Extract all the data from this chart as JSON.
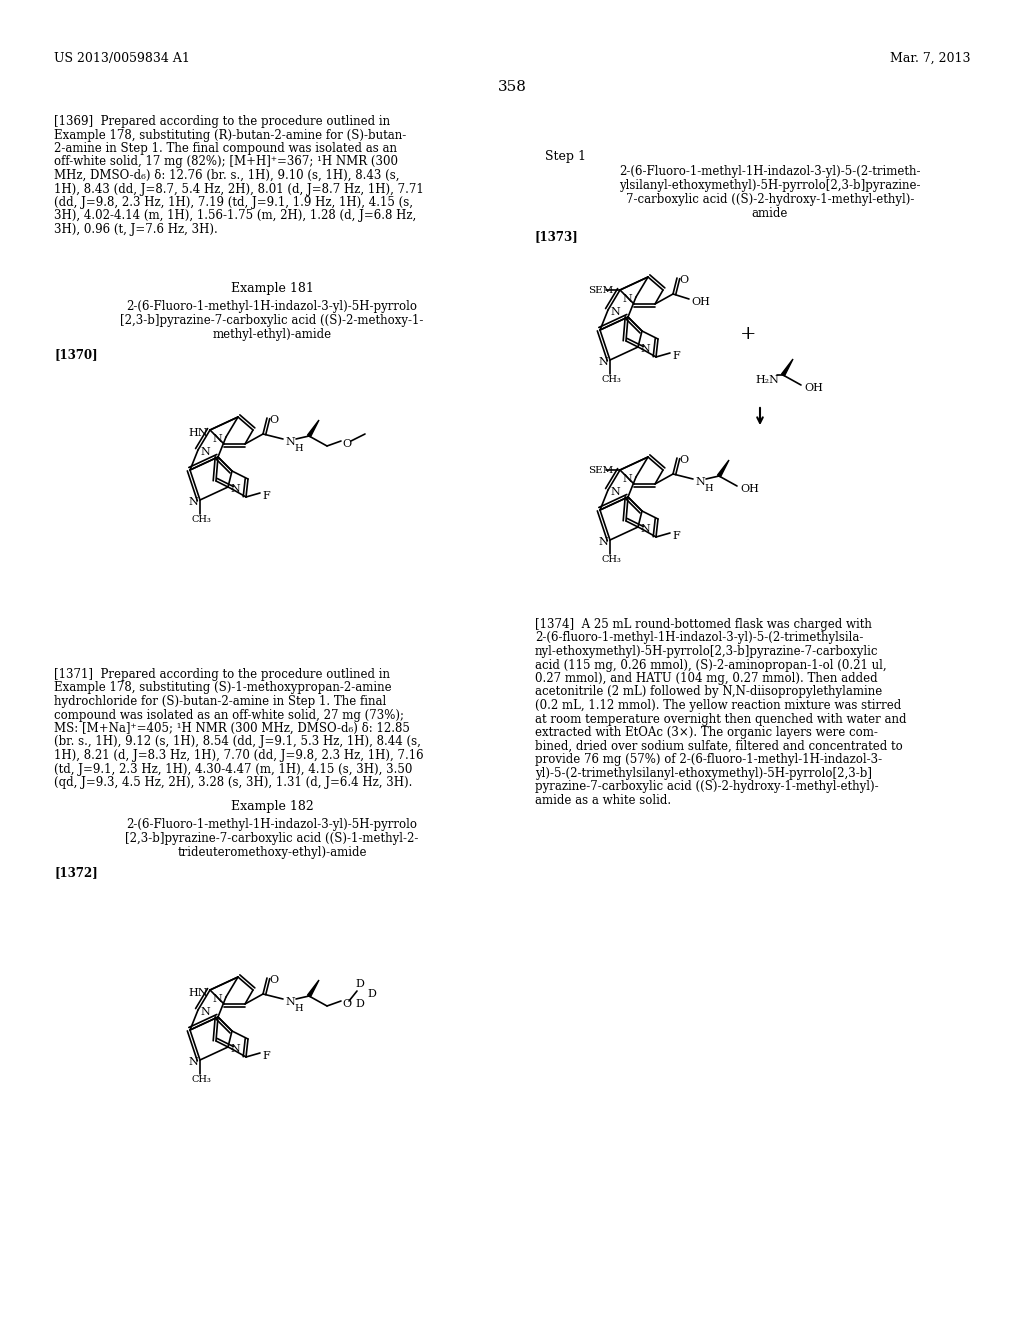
{
  "page_header_left": "US 2013/0059834 A1",
  "page_header_right": "Mar. 7, 2013",
  "page_number": "358",
  "bg": "#ffffff",
  "fg": "#000000"
}
